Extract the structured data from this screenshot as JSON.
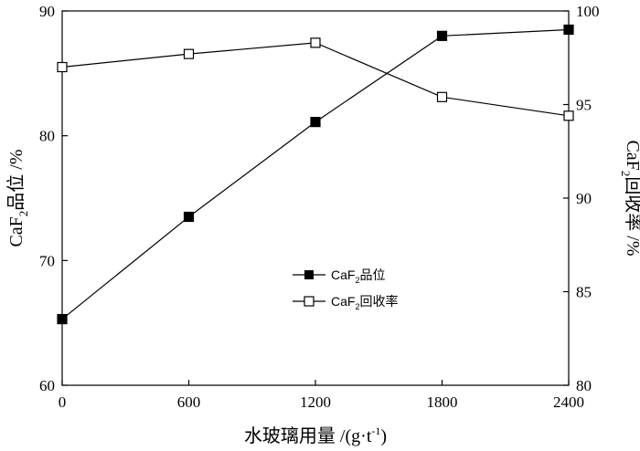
{
  "chart_data": {
    "type": "line",
    "x": [
      0,
      600,
      1200,
      1800,
      2400
    ],
    "xlim": [
      0,
      2400
    ],
    "xticks": [
      "0",
      "600",
      "1200",
      "1800",
      "2400"
    ],
    "xlabel": {
      "main": "水玻璃用量 /(g·t",
      "sup": "-1",
      "tail": ")"
    },
    "y_left": {
      "lim": [
        60,
        90
      ],
      "ticks": [
        "60",
        "70",
        "80",
        "90"
      ],
      "label": {
        "pre": "CaF",
        "sub": "2",
        "post": "品位 /%"
      }
    },
    "y_right": {
      "lim": [
        80,
        100
      ],
      "ticks": [
        "80",
        "85",
        "90",
        "95",
        "100"
      ],
      "label": {
        "pre": "CaF",
        "sub": "2",
        "post": "回收率 /%"
      }
    },
    "series": [
      {
        "name": {
          "pre": "CaF",
          "sub": "2",
          "post": "品位"
        },
        "axis": "left",
        "marker": "filled-square",
        "values": [
          65.3,
          73.5,
          81.1,
          88.0,
          88.5
        ]
      },
      {
        "name": {
          "pre": "CaF",
          "sub": "2",
          "post": "回收率"
        },
        "axis": "right",
        "marker": "open-square",
        "values": [
          97.0,
          97.7,
          98.3,
          95.4,
          94.4
        ]
      }
    ],
    "grid": false,
    "legend": "center"
  }
}
